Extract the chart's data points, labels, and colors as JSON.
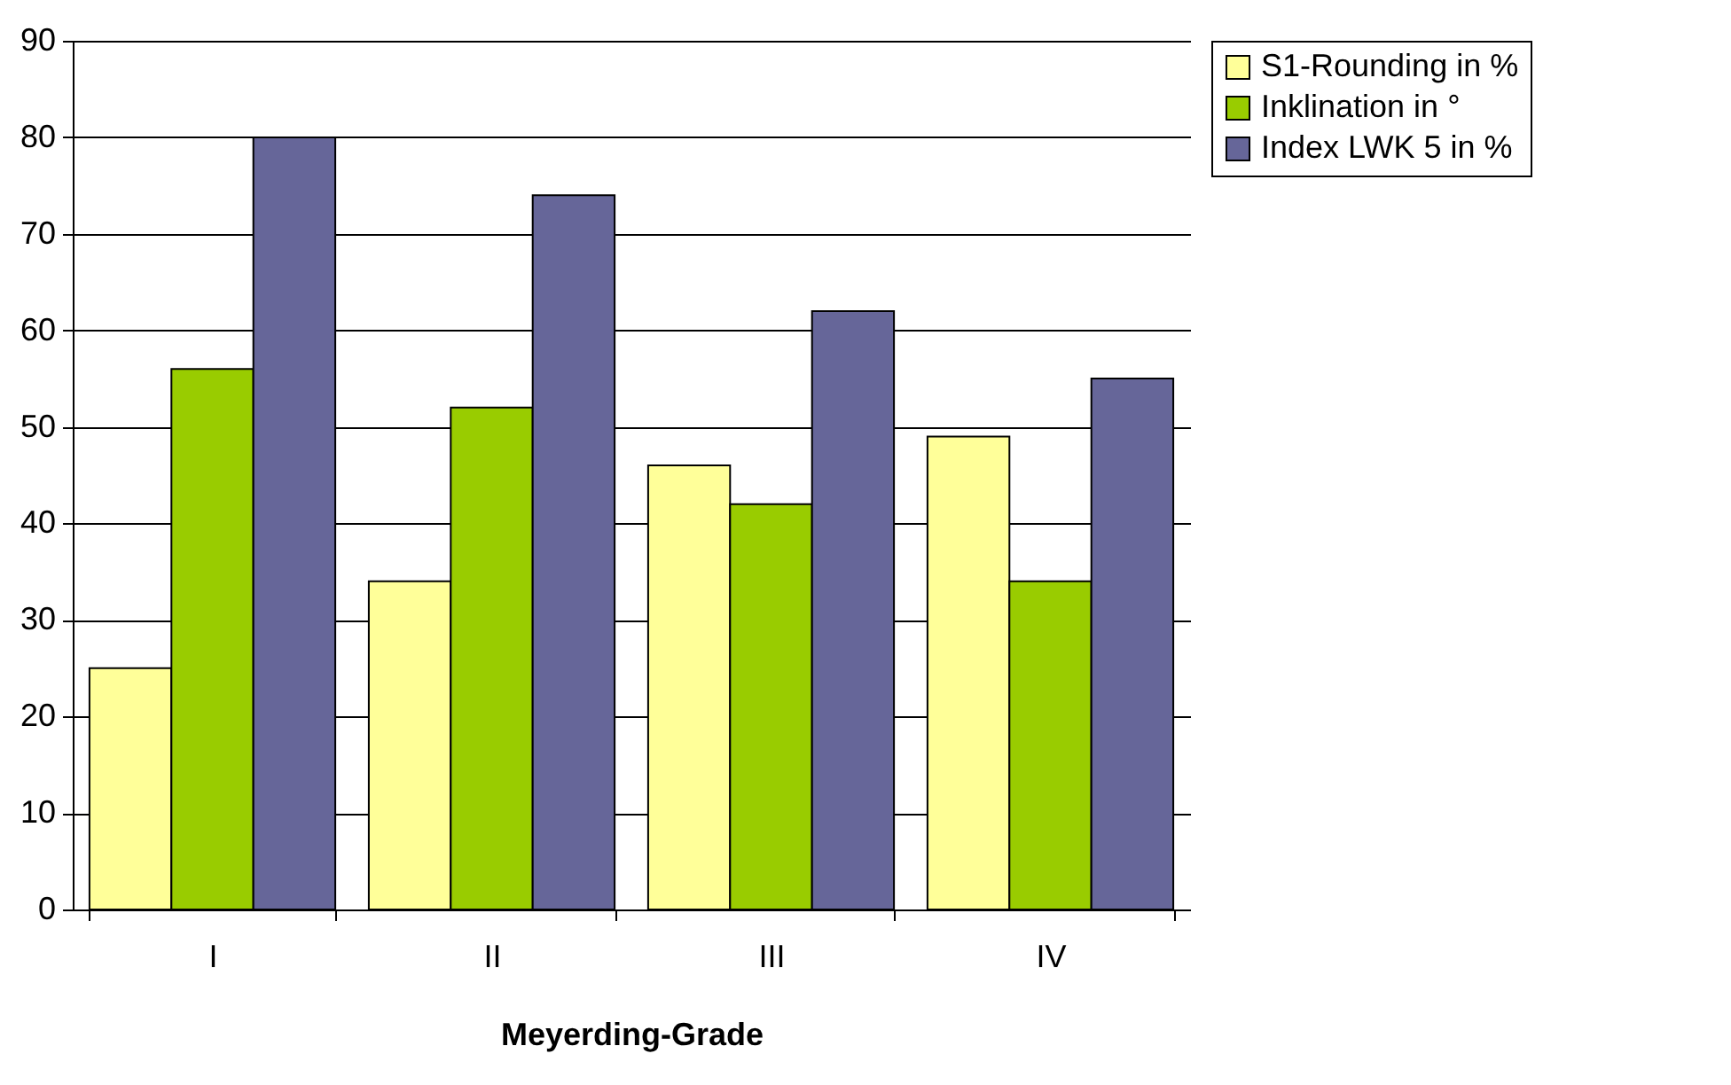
{
  "chart_data": {
    "type": "bar",
    "xlabel": "Meyerding-Grade",
    "categories": [
      "I",
      "II",
      "III",
      "IV"
    ],
    "series": [
      {
        "name": "S1-Rounding in %",
        "color": "#ffff99",
        "values": [
          25,
          34,
          46,
          49
        ]
      },
      {
        "name": "Inklination in °",
        "color": "#99cc00",
        "values": [
          56,
          52,
          42,
          34
        ]
      },
      {
        "name": "Index LWK 5 in %",
        "color": "#666699",
        "values": [
          80,
          74,
          62,
          55
        ]
      }
    ],
    "ylim": [
      0,
      90
    ],
    "yticks": [
      0,
      10,
      20,
      30,
      40,
      50,
      60,
      70,
      80,
      90
    ],
    "grid": "y",
    "legend": "right"
  }
}
